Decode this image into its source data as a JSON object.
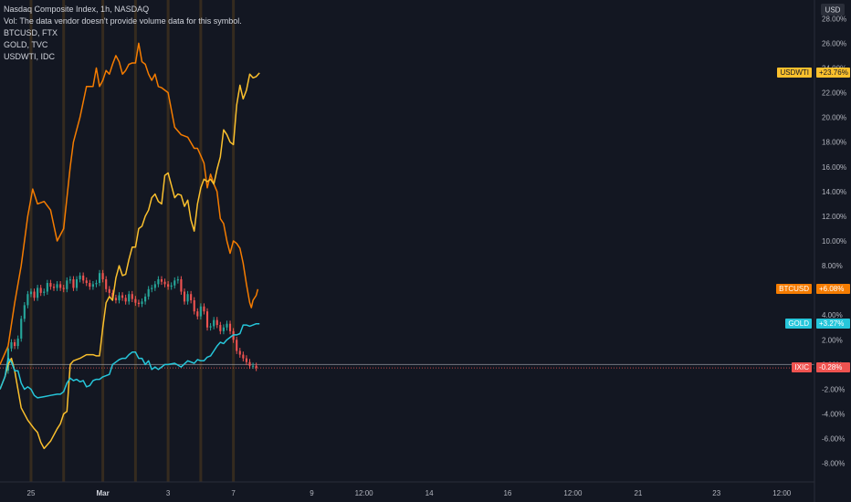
{
  "legend": {
    "main": "Nasdaq Composite Index, 1h, NASDAQ",
    "volume": "Vol: The data vendor doesn't provide volume data for this symbol.",
    "compare1": "BTCUSD, FTX",
    "compare2": "GOLD, TVC",
    "compare3": "USDWTI, IDC"
  },
  "colors": {
    "background": "#131722",
    "btcusd": "#f57c00",
    "usdwti": "#fbc02d",
    "gold": "#26c6da",
    "candle_up": "#26a69a",
    "candle_down": "#ef5350",
    "text": "#b2b5be"
  },
  "chart_data": {
    "type": "line",
    "title": "Nasdaq Composite Index, 1h, NASDAQ",
    "y_axis_unit": "USD",
    "y_ticks": [
      "28.00%",
      "26.00%",
      "24.00%",
      "22.00%",
      "20.00%",
      "18.00%",
      "16.00%",
      "14.00%",
      "12.00%",
      "10.00%",
      "8.00%",
      "6.00%",
      "4.00%",
      "2.00%",
      "0.00%",
      "-2.00%",
      "-4.00%",
      "-6.00%",
      "-8.00%"
    ],
    "y_tick_values": [
      28,
      26,
      24,
      22,
      20,
      18,
      16,
      14,
      12,
      10,
      8,
      6,
      4,
      2,
      0,
      -2,
      -4,
      -6,
      -8
    ],
    "ylim": [
      -9.5,
      29.5
    ],
    "x_ticks": [
      "25",
      "Mar",
      "3",
      "7",
      "9",
      "12:00",
      "14",
      "16",
      "12:00",
      "21",
      "23",
      "12:00"
    ],
    "x_tick_values": [
      6,
      28,
      48,
      68,
      92,
      108,
      128,
      152,
      172,
      192,
      216,
      236
    ],
    "xlim": [
      -3.5,
      246
    ],
    "session_markers": [
      6,
      16,
      28,
      38,
      48,
      58,
      68
    ],
    "grid": false,
    "series": [
      {
        "name": "BTCUSD",
        "last_label": "+6.08%",
        "x": [
          -3.5,
          -1,
          1,
          3,
          5,
          6.5,
          8,
          10,
          12,
          14,
          16,
          18,
          19,
          21,
          23,
          25,
          26,
          27,
          28,
          29,
          30,
          31,
          32,
          33,
          34,
          35,
          36,
          37,
          38,
          39,
          40,
          41,
          42,
          43,
          44,
          45,
          46,
          48,
          50,
          52,
          54,
          56,
          57,
          58,
          59,
          60,
          61,
          62,
          63,
          64,
          65,
          66,
          67,
          68,
          69,
          70,
          71,
          72,
          73,
          73.5,
          74,
          75,
          75.5
        ],
        "y": [
          0,
          1.5,
          5,
          8,
          12,
          14.2,
          13,
          13.2,
          12.5,
          10,
          11,
          16,
          18,
          20,
          22.5,
          22.5,
          24,
          22.5,
          23,
          23.8,
          23.5,
          24.3,
          25,
          24.5,
          23.5,
          23.8,
          24.3,
          24.4,
          24.4,
          26,
          24.5,
          24.3,
          23.5,
          23,
          23.5,
          22.5,
          22.4,
          22,
          19.2,
          18.6,
          18.4,
          17.5,
          17.5,
          16.9,
          16.3,
          14.3,
          15.4,
          14.6,
          14,
          11.8,
          11.4,
          10,
          9,
          10,
          9.8,
          9.4,
          8.2,
          6.5,
          5,
          4.6,
          5.2,
          5.6,
          6.1
        ],
        "color": "#f57c00"
      },
      {
        "name": "USDWTI",
        "last_label": "+23.76%",
        "x": [
          -3.5,
          -2,
          -1,
          0,
          1,
          3,
          5,
          7,
          8,
          9,
          10,
          11,
          12,
          14,
          15,
          16,
          17,
          18,
          19,
          21,
          23,
          25,
          26,
          27,
          28,
          29,
          30,
          31,
          32,
          33,
          34,
          35,
          36,
          37,
          38,
          39,
          40,
          41,
          42,
          43,
          44,
          45,
          46,
          47,
          48,
          49,
          50,
          51,
          52,
          53,
          54,
          55,
          56,
          57,
          58,
          59,
          60,
          61,
          62,
          63,
          64,
          65,
          66,
          67,
          68,
          69,
          70,
          71,
          72,
          73,
          74,
          75,
          76
        ],
        "y": [
          -2,
          -1,
          0,
          0.5,
          -0.5,
          -3.5,
          -4.5,
          -5.2,
          -5.5,
          -6.3,
          -6.8,
          -6.5,
          -6.2,
          -5.2,
          -4.8,
          -4,
          -3.8,
          0,
          0.3,
          0.5,
          0.8,
          0.8,
          0.7,
          0.7,
          3,
          5,
          5.5,
          5.2,
          7,
          8,
          7.2,
          7.3,
          8.5,
          9.5,
          9.5,
          11,
          11.2,
          12,
          12.5,
          13.5,
          13.8,
          13.2,
          13,
          15.3,
          15.5,
          14.5,
          13.5,
          13.8,
          13.7,
          12.8,
          13.3,
          11.7,
          10.8,
          13,
          14.3,
          15,
          14.8,
          15,
          14.6,
          15.8,
          16.8,
          19,
          18.6,
          18,
          17.8,
          21,
          22.6,
          21.5,
          22.2,
          23.5,
          23.2,
          23.3,
          23.6
        ],
        "color": "#fbc02d"
      },
      {
        "name": "GOLD",
        "last_label": "+3.27%",
        "x": [
          -3.5,
          -2,
          -1,
          0,
          1,
          2,
          3,
          4,
          5,
          6,
          7,
          8,
          10,
          12,
          14,
          15,
          16,
          17,
          18,
          19,
          20,
          21,
          22,
          23,
          24,
          25,
          26,
          27,
          28,
          29,
          30,
          31,
          32,
          33,
          34,
          35,
          36,
          37,
          38,
          39,
          40,
          41,
          42,
          43,
          44,
          45,
          46,
          47,
          48,
          50,
          52,
          54,
          56,
          57,
          58,
          59,
          60,
          61,
          62,
          63,
          64,
          65,
          66,
          67,
          68,
          69,
          70,
          71,
          72,
          73,
          74,
          75,
          76
        ],
        "y": [
          -2,
          -1,
          0.5,
          0.2,
          -0.5,
          -0.5,
          -1.5,
          -2,
          -1.8,
          -2,
          -2.5,
          -2.7,
          -2.6,
          -2.5,
          -2.4,
          -2.4,
          -2.2,
          -1.5,
          -1.1,
          -1.3,
          -1.2,
          -1.4,
          -1.3,
          -1.8,
          -1.7,
          -1.3,
          -1.2,
          -1.2,
          -1.0,
          -0.9,
          -0.8,
          0,
          0.2,
          0.4,
          0.5,
          0.5,
          0.8,
          1.0,
          1.0,
          0.5,
          0.5,
          0,
          0.3,
          -0.4,
          -0.2,
          -0.4,
          -0.2,
          0,
          0,
          0.1,
          -0.2,
          0.3,
          0.1,
          0.4,
          0.3,
          0.3,
          0.6,
          0.7,
          1.1,
          1.5,
          1.8,
          1.7,
          2.0,
          2.2,
          2.4,
          2.4,
          2.5,
          3.2,
          3.2,
          3.1,
          3.2,
          3.3,
          3.3
        ],
        "color": "#26c6da"
      },
      {
        "name": "IXIC",
        "last_label": "-0.28%",
        "type": "candlestick",
        "x": [
          -1,
          0,
          1,
          2,
          3,
          4,
          5,
          6,
          7,
          8,
          9,
          10,
          11,
          12,
          13,
          14,
          15,
          16,
          17,
          18,
          19,
          20,
          21,
          22,
          23,
          24,
          25,
          26,
          27,
          28,
          29,
          30,
          31,
          32,
          33,
          34,
          35,
          36,
          37,
          38,
          39,
          40,
          41,
          42,
          43,
          44,
          45,
          46,
          47,
          48,
          49,
          50,
          51,
          52,
          53,
          54,
          55,
          56,
          57,
          58,
          59,
          60,
          61,
          62,
          63,
          64,
          65,
          66,
          67,
          68,
          69,
          70,
          71,
          72,
          73,
          74,
          75
        ],
        "open": [
          -0.5,
          1.3,
          1.8,
          1.5,
          2.1,
          3.7,
          4.8,
          5.7,
          5.9,
          5.4,
          6.2,
          5.8,
          5.9,
          6.6,
          6.3,
          6.2,
          6.5,
          6.2,
          6.1,
          6.8,
          6.9,
          6.2,
          6.9,
          7.2,
          6.8,
          6.6,
          6.3,
          6.5,
          6.6,
          7.4,
          6.9,
          6.1,
          5.8,
          5.4,
          5.2,
          5.6,
          5.4,
          5.1,
          5.7,
          5.3,
          5.0,
          4.9,
          5.1,
          5.5,
          6.1,
          6.2,
          6.5,
          6.9,
          6.7,
          6.5,
          6.3,
          6.4,
          6.8,
          6.9,
          5.9,
          5.1,
          5.7,
          5.2,
          4.3,
          3.9,
          4.7,
          4.3,
          3.0,
          3.1,
          3.6,
          3.2,
          2.7,
          3.0,
          3.3,
          2.7,
          2.0,
          1.1,
          0.8,
          0.5,
          0.2,
          -0.1,
          -0.1
        ],
        "close": [
          1.3,
          1.8,
          1.5,
          2.1,
          3.7,
          4.8,
          5.7,
          5.9,
          5.4,
          6.2,
          5.8,
          5.9,
          6.6,
          6.3,
          6.2,
          6.5,
          6.2,
          6.1,
          6.8,
          6.9,
          6.2,
          6.9,
          7.2,
          6.8,
          6.6,
          6.3,
          6.5,
          6.6,
          7.4,
          6.9,
          6.1,
          5.8,
          5.4,
          5.2,
          5.6,
          5.4,
          5.1,
          5.7,
          5.3,
          5.0,
          4.9,
          5.1,
          5.5,
          6.1,
          6.2,
          6.5,
          6.9,
          6.7,
          6.5,
          6.3,
          6.4,
          6.8,
          6.9,
          5.9,
          5.1,
          5.7,
          5.2,
          4.3,
          3.9,
          4.7,
          4.3,
          3.0,
          3.1,
          3.6,
          3.2,
          2.7,
          3.0,
          3.3,
          2.7,
          2.0,
          1.1,
          0.8,
          0.5,
          0.2,
          -0.1,
          -0.1,
          -0.28
        ],
        "color": "#ef5350"
      }
    ]
  }
}
